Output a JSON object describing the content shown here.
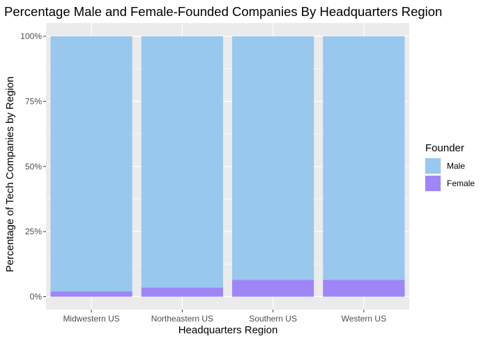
{
  "chart_data": {
    "type": "bar",
    "stacked": true,
    "title": "Percentage Male and Female-Founded Companies By Headquarters Region",
    "xlabel": "Headquarters Region",
    "ylabel": "Percentage of Tech Companies by Region",
    "categories": [
      "Midwestern US",
      "Northeastern US",
      "Southern US",
      "Western US"
    ],
    "series": [
      {
        "name": "Male",
        "color": "#99c8ee",
        "values": [
          98,
          96.5,
          93.5,
          93.5
        ]
      },
      {
        "name": "Female",
        "color": "#9e86f6",
        "values": [
          2,
          3.5,
          6.5,
          6.5
        ]
      }
    ],
    "ylim": [
      0,
      100
    ],
    "y_ticks": [
      0,
      25,
      50,
      75,
      100
    ],
    "y_tick_labels": [
      "0%",
      "25%",
      "50%",
      "75%",
      "100%"
    ],
    "legend": {
      "title": "Founder",
      "position": "right"
    },
    "grid": true,
    "panel_background": "#ebebeb"
  }
}
